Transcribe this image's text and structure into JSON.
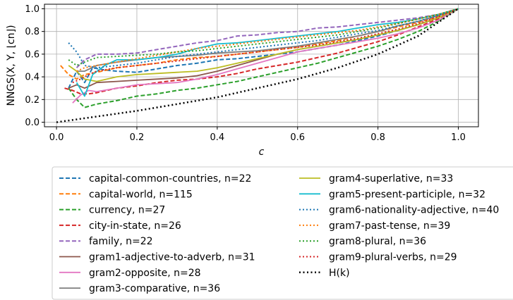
{
  "chart_data": {
    "type": "line",
    "xlabel": "c",
    "ylabel": "NNGS(X, Y, ⌊cn⌋)",
    "xlim": [
      -0.03,
      1.05
    ],
    "ylim": [
      -0.04,
      1.04
    ],
    "xticks": [
      0.0,
      0.2,
      0.4,
      0.6,
      0.8,
      1.0
    ],
    "yticks": [
      0.0,
      0.2,
      0.4,
      0.6,
      0.8,
      1.0
    ],
    "tick_labels_x": [
      "0.0",
      "0.2",
      "0.4",
      "0.6",
      "0.8",
      "1.0"
    ],
    "tick_labels_y": [
      "0.0",
      "0.2",
      "0.4",
      "0.6",
      "0.8",
      "1.0"
    ],
    "grid": true,
    "legend_position": "below",
    "series": [
      {
        "name": "capital-common-countries, n=22",
        "color": "#1f77b4",
        "dash": "dashed",
        "x": [
          0.03,
          0.05,
          0.07,
          0.09,
          0.12,
          0.15,
          0.2,
          0.25,
          0.3,
          0.35,
          0.4,
          0.45,
          0.5,
          0.55,
          0.6,
          0.65,
          0.7,
          0.75,
          0.8,
          0.85,
          0.9,
          0.95,
          1.0
        ],
        "y": [
          0.3,
          0.45,
          0.35,
          0.48,
          0.46,
          0.45,
          0.44,
          0.47,
          0.5,
          0.52,
          0.55,
          0.56,
          0.58,
          0.6,
          0.62,
          0.65,
          0.68,
          0.72,
          0.76,
          0.81,
          0.86,
          0.92,
          1.0
        ]
      },
      {
        "name": "capital-world, n=115",
        "color": "#ff7f0e",
        "dash": "dashed",
        "x": [
          0.01,
          0.03,
          0.05,
          0.07,
          0.1,
          0.15,
          0.2,
          0.25,
          0.3,
          0.35,
          0.4,
          0.45,
          0.5,
          0.55,
          0.6,
          0.65,
          0.7,
          0.75,
          0.8,
          0.85,
          0.9,
          0.95,
          1.0
        ],
        "y": [
          0.5,
          0.42,
          0.38,
          0.42,
          0.44,
          0.48,
          0.5,
          0.52,
          0.55,
          0.57,
          0.58,
          0.6,
          0.62,
          0.64,
          0.66,
          0.69,
          0.72,
          0.76,
          0.8,
          0.84,
          0.88,
          0.93,
          1.0
        ]
      },
      {
        "name": "currency, n=27",
        "color": "#2ca02c",
        "dash": "dashed",
        "x": [
          0.03,
          0.05,
          0.07,
          0.1,
          0.15,
          0.2,
          0.25,
          0.3,
          0.35,
          0.4,
          0.45,
          0.5,
          0.55,
          0.6,
          0.65,
          0.7,
          0.75,
          0.8,
          0.85,
          0.9,
          0.95,
          1.0
        ],
        "y": [
          0.3,
          0.2,
          0.13,
          0.16,
          0.19,
          0.23,
          0.25,
          0.28,
          0.3,
          0.33,
          0.36,
          0.4,
          0.44,
          0.48,
          0.52,
          0.57,
          0.62,
          0.67,
          0.73,
          0.8,
          0.89,
          1.0
        ]
      },
      {
        "name": "city-in-state, n=26",
        "color": "#d62728",
        "dash": "dashed",
        "x": [
          0.02,
          0.04,
          0.06,
          0.08,
          0.1,
          0.15,
          0.2,
          0.25,
          0.3,
          0.35,
          0.4,
          0.45,
          0.5,
          0.55,
          0.6,
          0.65,
          0.7,
          0.75,
          0.8,
          0.85,
          0.9,
          0.95,
          1.0
        ],
        "y": [
          0.3,
          0.28,
          0.25,
          0.25,
          0.26,
          0.3,
          0.32,
          0.35,
          0.37,
          0.38,
          0.4,
          0.43,
          0.47,
          0.5,
          0.53,
          0.57,
          0.61,
          0.66,
          0.71,
          0.77,
          0.84,
          0.91,
          1.0
        ]
      },
      {
        "name": "family, n=22",
        "color": "#9467bd",
        "dash": "dashed",
        "x": [
          0.05,
          0.07,
          0.1,
          0.15,
          0.2,
          0.25,
          0.3,
          0.35,
          0.4,
          0.45,
          0.5,
          0.55,
          0.6,
          0.65,
          0.7,
          0.75,
          0.8,
          0.85,
          0.9,
          0.95,
          1.0
        ],
        "y": [
          0.48,
          0.55,
          0.6,
          0.6,
          0.61,
          0.64,
          0.67,
          0.7,
          0.72,
          0.76,
          0.77,
          0.79,
          0.8,
          0.83,
          0.84,
          0.86,
          0.88,
          0.9,
          0.92,
          0.95,
          1.0
        ]
      },
      {
        "name": "gram1-adjective-to-adverb, n=31",
        "color": "#8c564b",
        "dash": "solid",
        "x": [
          0.03,
          0.05,
          0.07,
          0.1,
          0.15,
          0.2,
          0.25,
          0.3,
          0.35,
          0.4,
          0.45,
          0.5,
          0.55,
          0.6,
          0.65,
          0.7,
          0.75,
          0.8,
          0.85,
          0.9,
          0.95,
          1.0
        ],
        "y": [
          0.3,
          0.33,
          0.3,
          0.35,
          0.36,
          0.37,
          0.38,
          0.39,
          0.41,
          0.45,
          0.5,
          0.55,
          0.6,
          0.64,
          0.67,
          0.7,
          0.73,
          0.77,
          0.81,
          0.86,
          0.92,
          1.0
        ]
      },
      {
        "name": "gram2-opposite, n=28",
        "color": "#e377c2",
        "dash": "solid",
        "x": [
          0.04,
          0.06,
          0.08,
          0.1,
          0.15,
          0.2,
          0.25,
          0.3,
          0.35,
          0.4,
          0.45,
          0.5,
          0.55,
          0.6,
          0.65,
          0.7,
          0.75,
          0.8,
          0.85,
          0.9,
          0.95,
          1.0
        ],
        "y": [
          0.17,
          0.24,
          0.28,
          0.27,
          0.3,
          0.33,
          0.34,
          0.35,
          0.38,
          0.42,
          0.47,
          0.52,
          0.57,
          0.62,
          0.65,
          0.68,
          0.71,
          0.74,
          0.78,
          0.83,
          0.9,
          1.0
        ]
      },
      {
        "name": "gram3-comparative, n=36",
        "color": "#7f7f7f",
        "dash": "solid",
        "x": [
          0.05,
          0.07,
          0.1,
          0.15,
          0.2,
          0.25,
          0.3,
          0.35,
          0.4,
          0.45,
          0.5,
          0.55,
          0.6,
          0.65,
          0.7,
          0.75,
          0.8,
          0.85,
          0.9,
          0.95,
          1.0
        ],
        "y": [
          0.45,
          0.45,
          0.5,
          0.53,
          0.55,
          0.57,
          0.58,
          0.59,
          0.61,
          0.62,
          0.63,
          0.65,
          0.67,
          0.7,
          0.73,
          0.76,
          0.8,
          0.85,
          0.89,
          0.94,
          1.0
        ]
      },
      {
        "name": "gram4-superlative, n=33",
        "color": "#bcbd22",
        "dash": "solid",
        "x": [
          0.03,
          0.05,
          0.07,
          0.1,
          0.15,
          0.2,
          0.25,
          0.3,
          0.35,
          0.4,
          0.45,
          0.5,
          0.55,
          0.6,
          0.65,
          0.7,
          0.75,
          0.8,
          0.85,
          0.9,
          0.95,
          1.0
        ],
        "y": [
          0.5,
          0.45,
          0.38,
          0.36,
          0.4,
          0.42,
          0.43,
          0.44,
          0.45,
          0.48,
          0.52,
          0.56,
          0.6,
          0.64,
          0.67,
          0.7,
          0.73,
          0.77,
          0.81,
          0.86,
          0.92,
          1.0
        ]
      },
      {
        "name": "gram5-present-participle, n=32",
        "color": "#17becf",
        "dash": "solid",
        "x": [
          0.05,
          0.07,
          0.09,
          0.12,
          0.15,
          0.2,
          0.25,
          0.3,
          0.35,
          0.4,
          0.45,
          0.5,
          0.55,
          0.6,
          0.65,
          0.7,
          0.75,
          0.8,
          0.85,
          0.9,
          0.95,
          1.0
        ],
        "y": [
          0.35,
          0.23,
          0.42,
          0.5,
          0.55,
          0.55,
          0.57,
          0.6,
          0.65,
          0.69,
          0.7,
          0.72,
          0.74,
          0.76,
          0.78,
          0.8,
          0.83,
          0.86,
          0.88,
          0.91,
          0.95,
          1.0
        ]
      },
      {
        "name": "gram6-nationality-adjective, n=40",
        "color": "#1f77b4",
        "dash": "dotted",
        "x": [
          0.03,
          0.05,
          0.07,
          0.1,
          0.15,
          0.2,
          0.25,
          0.3,
          0.35,
          0.4,
          0.45,
          0.5,
          0.55,
          0.6,
          0.65,
          0.7,
          0.75,
          0.8,
          0.85,
          0.9,
          0.95,
          1.0
        ],
        "y": [
          0.7,
          0.62,
          0.5,
          0.48,
          0.5,
          0.52,
          0.55,
          0.58,
          0.6,
          0.62,
          0.64,
          0.66,
          0.68,
          0.7,
          0.72,
          0.75,
          0.78,
          0.81,
          0.85,
          0.89,
          0.94,
          1.0
        ]
      },
      {
        "name": "gram7-past-tense, n=39",
        "color": "#ff7f0e",
        "dash": "dotted",
        "x": [
          0.05,
          0.07,
          0.1,
          0.15,
          0.2,
          0.25,
          0.3,
          0.35,
          0.4,
          0.45,
          0.5,
          0.55,
          0.6,
          0.65,
          0.7,
          0.75,
          0.8,
          0.85,
          0.9,
          0.95,
          1.0
        ],
        "y": [
          0.45,
          0.48,
          0.5,
          0.53,
          0.56,
          0.59,
          0.62,
          0.65,
          0.67,
          0.69,
          0.71,
          0.73,
          0.75,
          0.77,
          0.79,
          0.81,
          0.84,
          0.87,
          0.91,
          0.95,
          1.0
        ]
      },
      {
        "name": "gram8-plural, n=36",
        "color": "#2ca02c",
        "dash": "dotted",
        "x": [
          0.03,
          0.05,
          0.07,
          0.1,
          0.15,
          0.2,
          0.25,
          0.3,
          0.35,
          0.4,
          0.45,
          0.5,
          0.55,
          0.6,
          0.65,
          0.7,
          0.75,
          0.8,
          0.85,
          0.9,
          0.95,
          1.0
        ],
        "y": [
          0.55,
          0.5,
          0.53,
          0.57,
          0.58,
          0.59,
          0.6,
          0.62,
          0.63,
          0.65,
          0.67,
          0.69,
          0.71,
          0.73,
          0.75,
          0.77,
          0.8,
          0.83,
          0.87,
          0.91,
          0.95,
          1.0
        ]
      },
      {
        "name": "gram9-plural-verbs, n=29",
        "color": "#d62728",
        "dash": "dotted",
        "x": [
          0.04,
          0.06,
          0.08,
          0.1,
          0.15,
          0.2,
          0.25,
          0.3,
          0.35,
          0.4,
          0.45,
          0.5,
          0.55,
          0.6,
          0.65,
          0.7,
          0.75,
          0.8,
          0.85,
          0.9,
          0.95,
          1.0
        ],
        "y": [
          0.35,
          0.38,
          0.42,
          0.45,
          0.48,
          0.5,
          0.52,
          0.54,
          0.56,
          0.58,
          0.6,
          0.62,
          0.64,
          0.66,
          0.68,
          0.71,
          0.74,
          0.78,
          0.82,
          0.87,
          0.93,
          1.0
        ]
      },
      {
        "name": "H(k)",
        "color": "#000000",
        "dash": "dotted-heavy",
        "x": [
          0.0,
          0.1,
          0.2,
          0.3,
          0.4,
          0.5,
          0.6,
          0.7,
          0.8,
          0.9,
          1.0
        ],
        "y": [
          0.0,
          0.05,
          0.1,
          0.16,
          0.22,
          0.3,
          0.38,
          0.48,
          0.6,
          0.76,
          1.0
        ]
      }
    ]
  }
}
